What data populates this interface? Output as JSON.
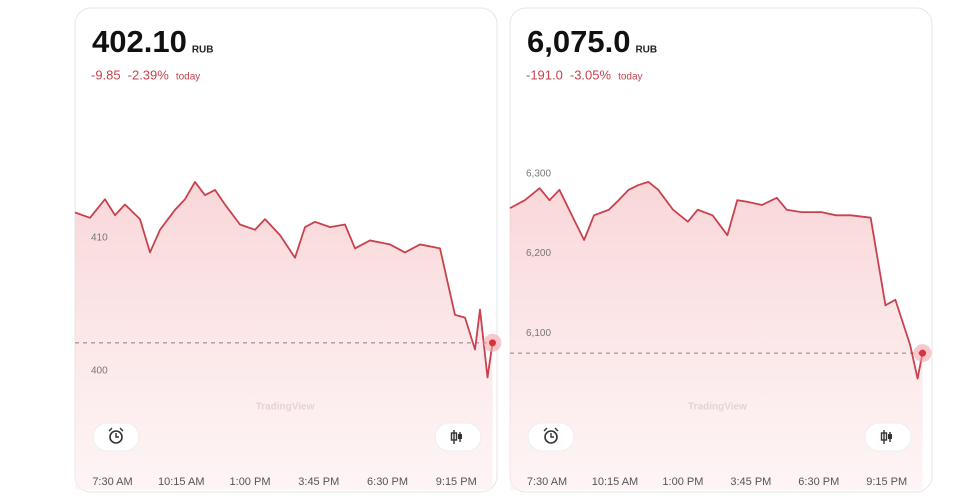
{
  "chart_data": [
    {
      "type": "line",
      "price": {
        "value": 402.1,
        "label": "402.10"
      },
      "currency": "RUB",
      "change": {
        "value": -9.85,
        "label": "-9.85"
      },
      "change_pct": {
        "value": -2.39,
        "label": "-2.39%"
      },
      "period": "today",
      "watermark": "TradingView",
      "color": "#c8424e",
      "x": [
        6.0,
        6.6,
        7.2,
        7.6,
        8.0,
        8.6,
        9.0,
        9.4,
        10.0,
        10.4,
        10.8,
        11.2,
        11.6,
        12.0,
        12.6,
        13.2,
        13.6,
        14.2,
        14.8,
        15.2,
        15.6,
        16.2,
        16.8,
        17.2,
        17.8,
        18.6,
        19.2,
        19.8,
        20.6,
        21.2,
        21.6,
        22.0,
        22.2,
        22.5,
        22.7
      ],
      "values": [
        411.9,
        411.5,
        412.9,
        411.7,
        412.5,
        411.4,
        408.9,
        410.6,
        412.1,
        412.9,
        414.2,
        413.2,
        413.6,
        412.5,
        411.0,
        410.6,
        411.4,
        410.2,
        408.5,
        410.8,
        411.2,
        410.8,
        411.0,
        409.2,
        409.8,
        409.5,
        408.9,
        409.5,
        409.2,
        404.2,
        404.0,
        401.6,
        404.6,
        399.5,
        402.1
      ],
      "xlim": [
        6.0,
        22.8
      ],
      "ylim": [
        396.3,
        416.6
      ],
      "yticks": [
        410,
        400
      ],
      "xticks": [
        {
          "value": 7.5,
          "label": "7:30 AM"
        },
        {
          "value": 10.25,
          "label": "10:15 AM"
        },
        {
          "value": 13,
          "label": "1:00 PM"
        },
        {
          "value": 15.75,
          "label": "3:45 PM"
        },
        {
          "value": 18.5,
          "label": "6:30 PM"
        },
        {
          "value": 21.25,
          "label": "9:15 PM"
        }
      ]
    },
    {
      "type": "line",
      "price": {
        "value": 6075,
        "label": "6,075.0"
      },
      "currency": "RUB",
      "change": {
        "value": -191,
        "label": "-191.0"
      },
      "change_pct": {
        "value": -3.05,
        "label": "-3.05%"
      },
      "period": "today",
      "watermark": "TradingView",
      "color": "#c8424e",
      "x": [
        6.0,
        6.6,
        7.2,
        7.6,
        8.0,
        8.6,
        9.0,
        9.4,
        10.0,
        10.4,
        10.8,
        11.2,
        11.6,
        12.0,
        12.6,
        13.2,
        13.6,
        14.2,
        14.8,
        15.2,
        15.6,
        16.2,
        16.8,
        17.2,
        17.8,
        18.6,
        19.2,
        19.8,
        20.6,
        21.2,
        21.6,
        22.0,
        22.2,
        22.5,
        22.7
      ],
      "values": [
        6257,
        6267,
        6282,
        6267,
        6280,
        6242,
        6217,
        6248,
        6255,
        6267,
        6280,
        6286,
        6290,
        6280,
        6255,
        6240,
        6255,
        6248,
        6223,
        6267,
        6265,
        6261,
        6270,
        6255,
        6252,
        6252,
        6248,
        6248,
        6245,
        6135,
        6142,
        6104,
        6085,
        6043,
        6075
      ],
      "xlim": [
        6.0,
        22.8
      ],
      "ylim": [
        5991,
        6330
      ],
      "yticks": [
        {
          "value": 6300,
          "label": "6,300"
        },
        {
          "value": 6200,
          "label": "6,200"
        },
        {
          "value": 6100,
          "label": "6,100"
        }
      ],
      "xticks": [
        {
          "value": 7.5,
          "label": "7:30 AM"
        },
        {
          "value": 10.25,
          "label": "10:15 AM"
        },
        {
          "value": 13,
          "label": "1:00 PM"
        },
        {
          "value": 15.75,
          "label": "3:45 PM"
        },
        {
          "value": 18.5,
          "label": "6:30 PM"
        },
        {
          "value": 21.25,
          "label": "9:15 PM"
        }
      ]
    }
  ]
}
